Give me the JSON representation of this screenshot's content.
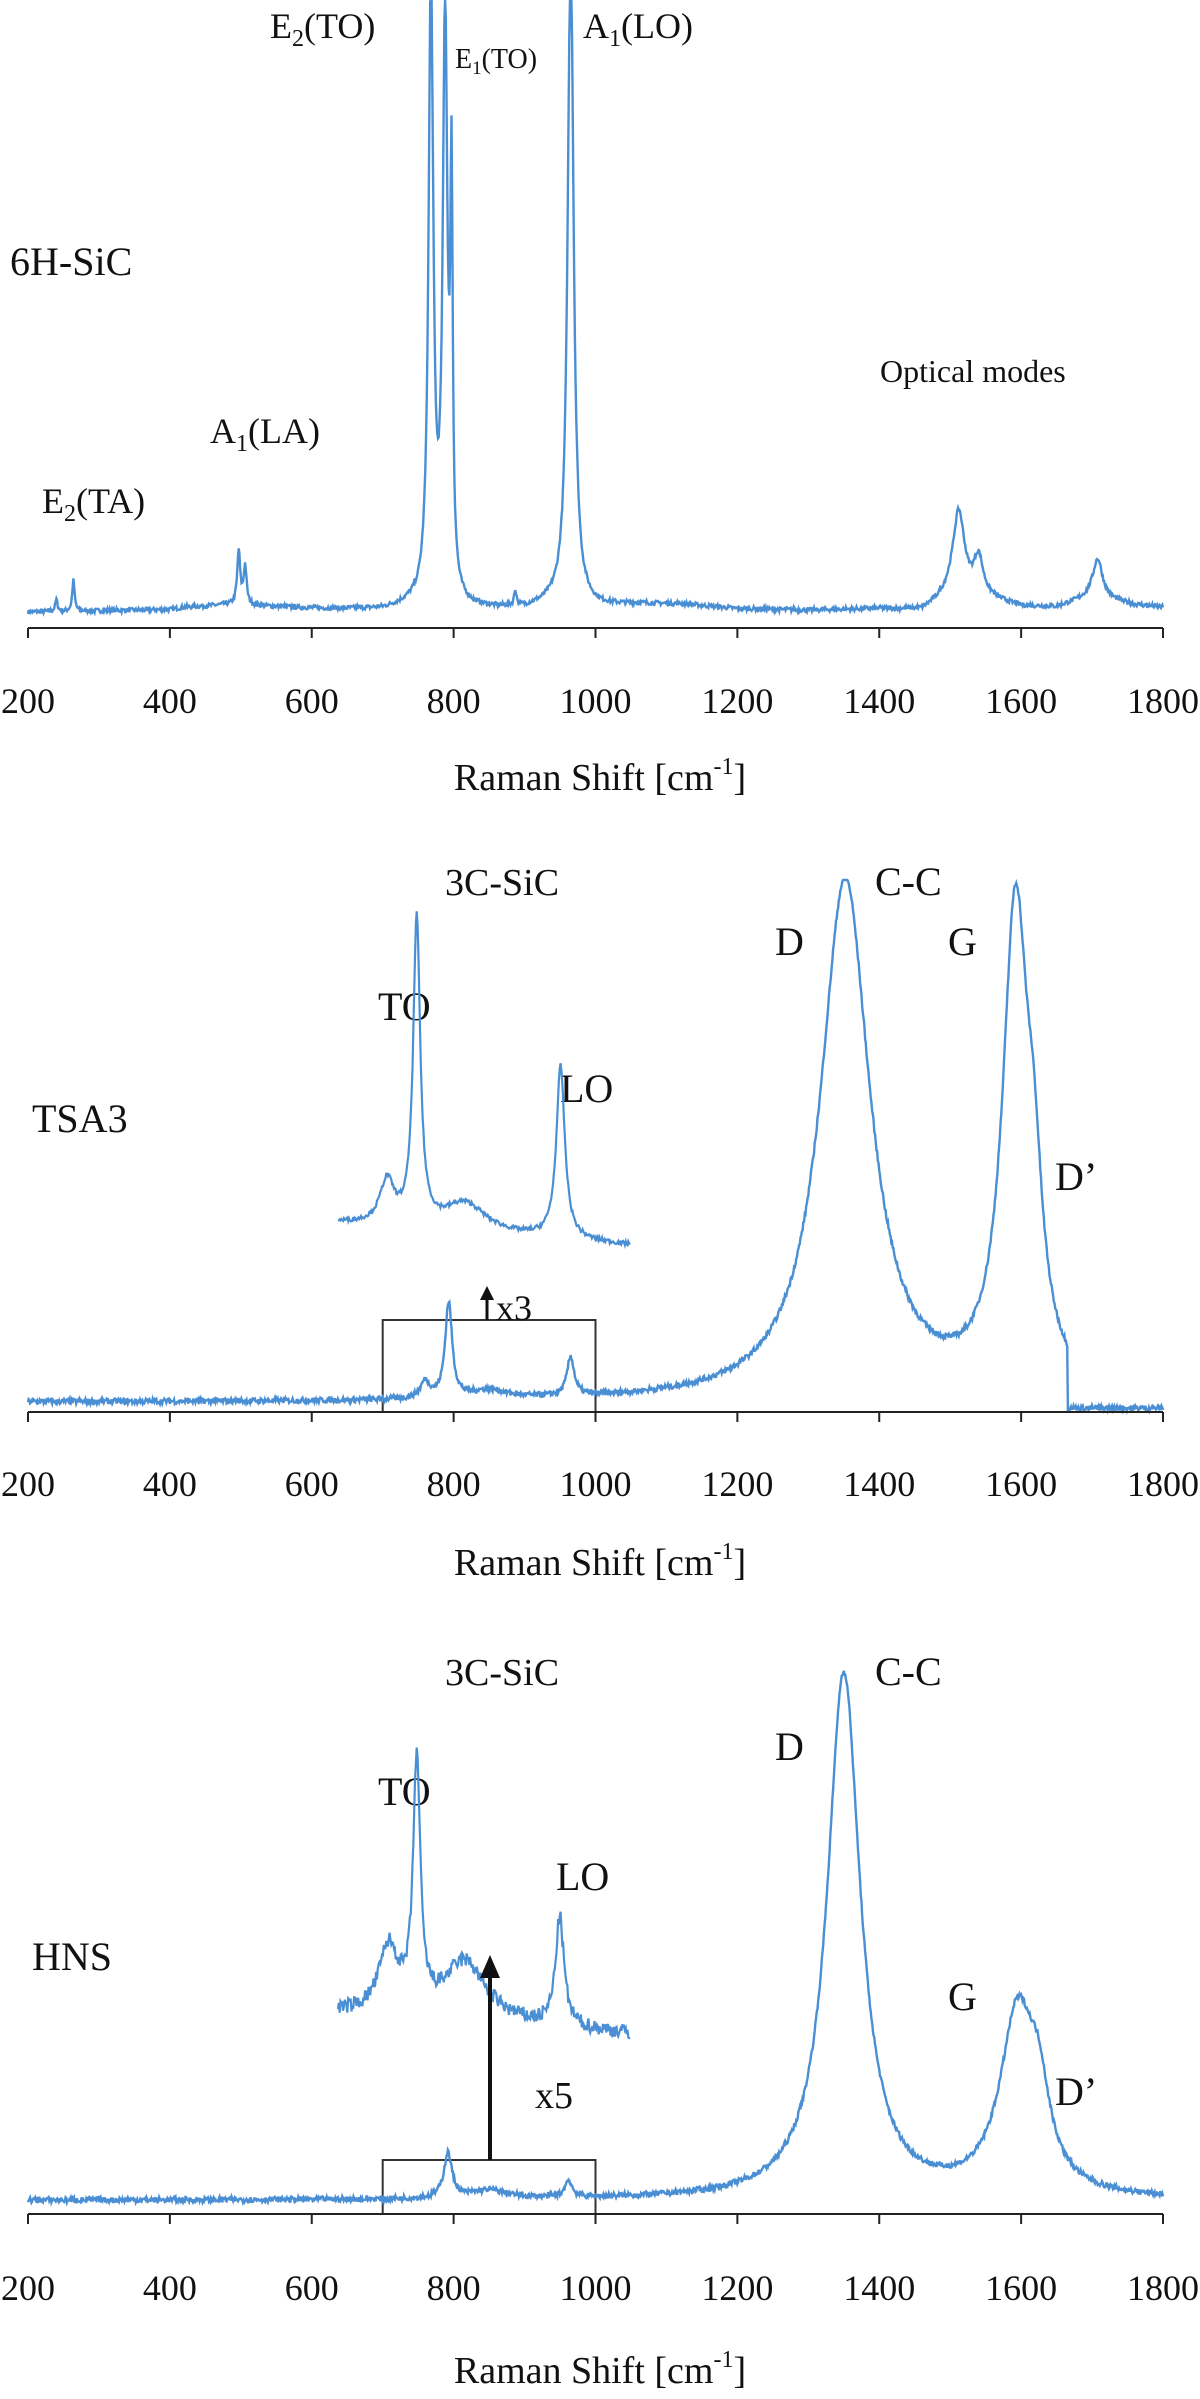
{
  "chart_data": [
    {
      "type": "line",
      "sample": "6H-SiC",
      "xlabel_main": "Raman Shift [cm",
      "xlabel_sup": "-1",
      "xlabel_end": "]",
      "xlim": [
        200,
        1800
      ],
      "xticks": [
        200,
        400,
        600,
        800,
        1000,
        1200,
        1400,
        1600,
        1800
      ],
      "ylim": [
        0,
        1
      ],
      "line_color": "#4a8fd4",
      "annotations": [
        {
          "id": "e2ta",
          "base": "E",
          "sub": "2",
          "rest": "(TA)"
        },
        {
          "id": "a1la",
          "base": "A",
          "sub": "1",
          "rest": "(LA)"
        },
        {
          "id": "e2to",
          "base": "E",
          "sub": "2",
          "rest": "(TO)"
        },
        {
          "id": "e1to",
          "base": "E",
          "sub": "1",
          "rest": "(TO)"
        },
        {
          "id": "a1lo",
          "base": "A",
          "sub": "1",
          "rest": "(LO)"
        },
        {
          "id": "optical",
          "base": "Optical modes",
          "sub": "",
          "rest": ""
        }
      ],
      "baseline": [
        [
          200,
          0.0
        ],
        [
          400,
          0.03
        ],
        [
          420,
          0.06
        ],
        [
          480,
          0.09
        ],
        [
          540,
          0.07
        ],
        [
          620,
          0.04
        ],
        [
          700,
          0.03
        ],
        [
          740,
          0.08
        ],
        [
          800,
          0.03
        ],
        [
          900,
          0.04
        ],
        [
          940,
          0.1
        ],
        [
          1000,
          0.06
        ],
        [
          1060,
          0.1
        ],
        [
          1120,
          0.1
        ],
        [
          1200,
          0.04
        ],
        [
          1300,
          0.02
        ],
        [
          1400,
          0.04
        ],
        [
          1460,
          0.02
        ],
        [
          1500,
          0.2
        ],
        [
          1560,
          0.15
        ],
        [
          1600,
          0.07
        ],
        [
          1650,
          0.06
        ],
        [
          1700,
          0.2
        ],
        [
          1760,
          0.09
        ],
        [
          1800,
          0.06
        ]
      ],
      "peaks": [
        {
          "x": 240,
          "h": 0.03,
          "w": 2
        },
        {
          "x": 264,
          "h": 0.08,
          "w": 2
        },
        {
          "x": 497,
          "h": 0.14,
          "w": 2.5
        },
        {
          "x": 506,
          "h": 0.1,
          "w": 2.5
        },
        {
          "x": 768,
          "h": 1.6,
          "w": 4
        },
        {
          "x": 788,
          "h": 1.5,
          "w": 4
        },
        {
          "x": 797,
          "h": 1.0,
          "w": 2
        },
        {
          "x": 887,
          "h": 0.04,
          "w": 2
        },
        {
          "x": 965,
          "h": 1.7,
          "w": 5
        },
        {
          "x": 1512,
          "h": 0.22,
          "w": 10
        },
        {
          "x": 1540,
          "h": 0.1,
          "w": 8
        },
        {
          "x": 1708,
          "h": 0.1,
          "w": 8
        }
      ]
    },
    {
      "type": "line",
      "sample": "TSA3",
      "xlabel_main": "Raman Shift [cm",
      "xlabel_sup": "-1",
      "xlabel_end": "]",
      "xlim": [
        200,
        1800
      ],
      "xticks": [
        200,
        400,
        600,
        800,
        1000,
        1200,
        1400,
        1600,
        1800
      ],
      "ylim": [
        0,
        1
      ],
      "line_color": "#4a8fd4",
      "inset_title": "3C-SiC",
      "inset_box_x": [
        700,
        1000
      ],
      "magnification": "x3",
      "annotations": [
        {
          "id": "to",
          "text": "TO"
        },
        {
          "id": "lo",
          "text": "LO"
        },
        {
          "id": "d",
          "text": "D"
        },
        {
          "id": "cc",
          "text": "C-C"
        },
        {
          "id": "g",
          "text": "G"
        },
        {
          "id": "dp",
          "text": "D’"
        }
      ],
      "main_peaks": [
        {
          "x": 1352,
          "h": 0.93,
          "w": 42
        },
        {
          "x": 1592,
          "h": 0.85,
          "w": 22
        },
        {
          "x": 1618,
          "h": 0.22,
          "w": 14
        },
        {
          "x": 793,
          "h": 0.17,
          "w": 6
        },
        {
          "x": 965,
          "h": 0.07,
          "w": 6
        },
        {
          "x": 760,
          "h": 0.03,
          "w": 8
        },
        {
          "x": 850,
          "h": 0.015,
          "w": 30
        }
      ],
      "cutoff": 1665,
      "inset_peaks": [
        {
          "x": 793,
          "h": 0.85,
          "w": 5
        },
        {
          "x": 963,
          "h": 0.48,
          "w": 6
        },
        {
          "x": 758,
          "h": 0.12,
          "w": 10
        },
        {
          "x": 850,
          "h": 0.08,
          "w": 30
        }
      ]
    },
    {
      "type": "line",
      "sample": "HNS",
      "xlabel_main": "Raman Shift [cm",
      "xlabel_sup": "-1",
      "xlabel_end": "]",
      "xlim": [
        200,
        1800
      ],
      "xticks": [
        200,
        400,
        600,
        800,
        1000,
        1200,
        1400,
        1600,
        1800
      ],
      "ylim": [
        0,
        1
      ],
      "line_color": "#4a8fd4",
      "inset_title": "3C-SiC",
      "inset_box_x": [
        700,
        1000
      ],
      "magnification": "x5",
      "annotations": [
        {
          "id": "to",
          "text": "TO"
        },
        {
          "id": "lo",
          "text": "LO"
        },
        {
          "id": "d",
          "text": "D"
        },
        {
          "id": "cc",
          "text": "C-C"
        },
        {
          "id": "g",
          "text": "G"
        },
        {
          "id": "dp",
          "text": "D’"
        }
      ],
      "main_peaks": [
        {
          "x": 1350,
          "h": 0.94,
          "w": 28
        },
        {
          "x": 1595,
          "h": 0.32,
          "w": 30
        },
        {
          "x": 1625,
          "h": 0.12,
          "w": 18
        },
        {
          "x": 792,
          "h": 0.08,
          "w": 7
        },
        {
          "x": 962,
          "h": 0.03,
          "w": 6
        },
        {
          "x": 850,
          "h": 0.015,
          "w": 30
        }
      ],
      "cutoff": 1800,
      "inset_peaks": [
        {
          "x": 793,
          "h": 0.75,
          "w": 5
        },
        {
          "x": 962,
          "h": 0.33,
          "w": 6
        },
        {
          "x": 760,
          "h": 0.2,
          "w": 14
        },
        {
          "x": 850,
          "h": 0.18,
          "w": 30
        }
      ]
    }
  ]
}
